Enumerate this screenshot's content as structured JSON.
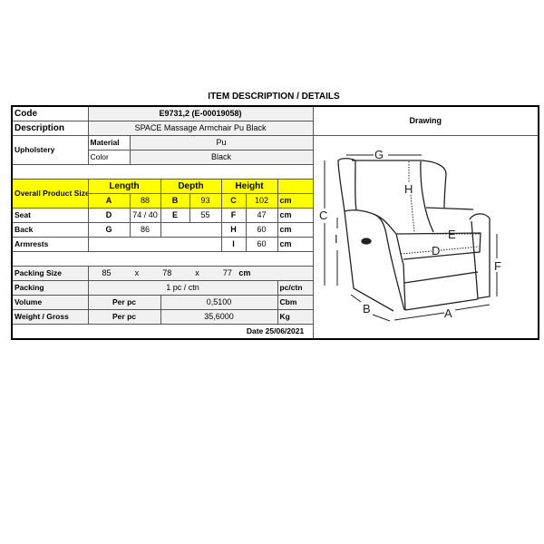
{
  "title": "ITEM DESCRIPTION / DETAILS",
  "code": {
    "label": "Code",
    "value": "E9731,2 (E-00019058)"
  },
  "description": {
    "label": "Description",
    "value": "SPACE Massage Armchair Pu Black"
  },
  "upholstery": {
    "label": "Upholstery",
    "material_label": "Material",
    "material": "Pu",
    "color_label": "Color",
    "color": "Black"
  },
  "drawing_label": "Drawing",
  "size_header": {
    "label": "Overall Product Size",
    "length": "Length",
    "depth": "Depth",
    "height": "Height"
  },
  "overall": {
    "a": "A",
    "a_val": "88",
    "b": "B",
    "b_val": "93",
    "c": "C",
    "c_val": "102",
    "unit": "cm"
  },
  "seat": {
    "label": "Seat",
    "d": "D",
    "d_val": "74 / 40",
    "e": "E",
    "e_val": "55",
    "f": "F",
    "f_val": "47",
    "unit": "cm"
  },
  "back": {
    "label": "Back",
    "g": "G",
    "g_val": "86",
    "h": "H",
    "h_val": "60",
    "unit": "cm"
  },
  "armrests": {
    "label": "Armrests",
    "i": "I",
    "i_val": "60",
    "unit": "cm"
  },
  "packing_size": {
    "label": "Packing Size",
    "l": "85",
    "x1": "x",
    "w": "78",
    "x2": "x",
    "h": "77",
    "unit": "cm"
  },
  "packing": {
    "label": "Packing",
    "value": "1 pc / ctn",
    "unit": "pc/ctn"
  },
  "volume": {
    "label": "Volume",
    "per": "Per pc",
    "value": "0,5100",
    "unit": "Cbm"
  },
  "weight": {
    "label": "Weight / Gross",
    "per": "Per pc",
    "value": "35,6000",
    "unit": "Kg"
  },
  "date": "Date 25/06/2021",
  "drawing_letters": {
    "a": "A",
    "b": "B",
    "c": "C",
    "d": "D",
    "e": "E",
    "f": "F",
    "g": "G",
    "h": "H",
    "i": "I"
  }
}
